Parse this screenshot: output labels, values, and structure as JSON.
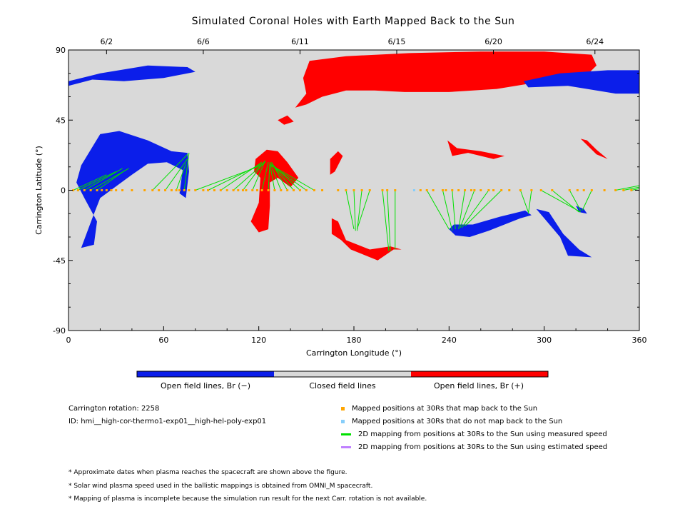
{
  "title": "Simulated Coronal Holes with Earth Mapped Back to the Sun",
  "colors": {
    "open_negative": "#0b1eea",
    "open_positive": "#ff0000",
    "closed": "#d9d9d9",
    "mapped": "#ffa500",
    "unmapped": "#87cefa",
    "measured_line": "#00e000",
    "estimated_line": "#c080ff"
  },
  "colorbar": {
    "labels": [
      "Open field lines, Br (−)",
      "Closed field lines",
      "Open field lines, Br (+)"
    ]
  },
  "info": {
    "rotation": "Carrington rotation: 2258",
    "id": "ID: hmi__high-cor-thermo1-exp01__high-hel-poly-exp01"
  },
  "legend": [
    {
      "label": "Mapped positions at 30Rs that map back to the Sun",
      "kind": "square",
      "color": "#ffa500"
    },
    {
      "label": "Mapped positions at 30Rs that do not map back to the Sun",
      "kind": "square",
      "color": "#87cefa"
    },
    {
      "label": "2D mapping from positions at 30Rs to the Sun using measured speed",
      "kind": "line",
      "color": "#00e000"
    },
    {
      "label": "2D mapping from positions at 30Rs to the Sun using estimated speed",
      "kind": "line",
      "color": "#c080ff"
    }
  ],
  "notes": [
    "* Approximate dates when plasma reaches the spacecraft are shown above the figure.",
    "* Solar wind plasma speed used in the ballistic mappings is obtained from OMNI_M spacecraft.",
    "* Mapping of plasma is incomplete because the simulation run result for the next Carr. rotation is not available."
  ],
  "chart_data": {
    "type": "scatter",
    "title": "Simulated Coronal Holes with Earth Mapped Back to the Sun",
    "xlabel": "Carrington Longitude (°)",
    "ylabel": "Carrington Latitude (°)",
    "xlim": [
      0,
      360
    ],
    "ylim": [
      -90,
      90
    ],
    "xticks": [
      0,
      60,
      120,
      180,
      240,
      300,
      360
    ],
    "yticks": [
      -90,
      -45,
      0,
      45,
      90
    ],
    "top_axis": {
      "ticks": [
        {
          "lon": 24,
          "label": "6/2"
        },
        {
          "lon": 85,
          "label": "6/6"
        },
        {
          "lon": 146,
          "label": "6/11"
        },
        {
          "lon": 207,
          "label": "6/15"
        },
        {
          "lon": 268,
          "label": "6/20"
        },
        {
          "lon": 332,
          "label": "6/24"
        }
      ]
    },
    "coronal_holes": [
      {
        "polarity": "positive",
        "points": [
          [
            152,
            83
          ],
          [
            175,
            86
          ],
          [
            215,
            88
          ],
          [
            260,
            89
          ],
          [
            300,
            89
          ],
          [
            330,
            87
          ],
          [
            333,
            80
          ],
          [
            325,
            72
          ],
          [
            300,
            70
          ],
          [
            270,
            65
          ],
          [
            240,
            63
          ],
          [
            212,
            63
          ],
          [
            193,
            64
          ],
          [
            175,
            64
          ],
          [
            160,
            60
          ],
          [
            150,
            55
          ],
          [
            143,
            53
          ],
          [
            150,
            62
          ],
          [
            148,
            72
          ]
        ]
      },
      {
        "polarity": "positive",
        "points": [
          [
            132,
            45
          ],
          [
            138,
            48
          ],
          [
            142,
            44
          ],
          [
            136,
            42
          ]
        ]
      },
      {
        "polarity": "positive",
        "points": [
          [
            118,
            20
          ],
          [
            125,
            26
          ],
          [
            132,
            25
          ],
          [
            138,
            18
          ],
          [
            145,
            8
          ],
          [
            140,
            2
          ],
          [
            132,
            8
          ],
          [
            127,
            5
          ],
          [
            127,
            -10
          ],
          [
            126,
            -25
          ],
          [
            120,
            -27
          ],
          [
            115,
            -20
          ],
          [
            120,
            -8
          ],
          [
            121,
            8
          ],
          [
            117,
            12
          ]
        ]
      },
      {
        "polarity": "positive",
        "points": [
          [
            165,
            20
          ],
          [
            170,
            25
          ],
          [
            173,
            22
          ],
          [
            168,
            12
          ],
          [
            165,
            10
          ]
        ]
      },
      {
        "polarity": "positive",
        "points": [
          [
            166,
            -28
          ],
          [
            172,
            -32
          ],
          [
            178,
            -38
          ],
          [
            195,
            -45
          ],
          [
            205,
            -38
          ],
          [
            210,
            -38
          ],
          [
            203,
            -36
          ],
          [
            190,
            -38
          ],
          [
            175,
            -32
          ],
          [
            170,
            -20
          ],
          [
            166,
            -18
          ]
        ]
      },
      {
        "polarity": "positive",
        "points": [
          [
            239,
            32
          ],
          [
            245,
            27
          ],
          [
            260,
            25
          ],
          [
            275,
            22
          ],
          [
            268,
            20
          ],
          [
            252,
            24
          ],
          [
            242,
            22
          ]
        ]
      },
      {
        "polarity": "positive",
        "points": [
          [
            323,
            33
          ],
          [
            333,
            23
          ],
          [
            340,
            20
          ],
          [
            333,
            26
          ],
          [
            327,
            32
          ]
        ]
      },
      {
        "polarity": "negative",
        "points": [
          [
            0,
            70
          ],
          [
            20,
            75
          ],
          [
            50,
            80
          ],
          [
            75,
            79
          ],
          [
            80,
            76
          ],
          [
            60,
            72
          ],
          [
            35,
            70
          ],
          [
            15,
            71
          ],
          [
            0,
            67
          ]
        ]
      },
      {
        "polarity": "negative",
        "points": [
          [
            287,
            70
          ],
          [
            310,
            75
          ],
          [
            340,
            77
          ],
          [
            360,
            77
          ],
          [
            360,
            62
          ],
          [
            345,
            62
          ],
          [
            315,
            67
          ],
          [
            290,
            66
          ]
        ]
      },
      {
        "polarity": "negative",
        "points": [
          [
            8,
            16
          ],
          [
            20,
            36
          ],
          [
            32,
            38
          ],
          [
            50,
            32
          ],
          [
            65,
            25
          ],
          [
            75,
            24
          ],
          [
            76,
            12
          ],
          [
            74,
            -5
          ],
          [
            70,
            -2
          ],
          [
            72,
            13
          ],
          [
            62,
            18
          ],
          [
            50,
            17
          ],
          [
            40,
            10
          ],
          [
            20,
            -5
          ],
          [
            15,
            -18
          ],
          [
            8,
            -37
          ],
          [
            16,
            -35
          ],
          [
            18,
            -20
          ],
          [
            10,
            -5
          ],
          [
            5,
            5
          ]
        ]
      },
      {
        "polarity": "negative",
        "points": [
          [
            240,
            -25
          ],
          [
            244,
            -29
          ],
          [
            253,
            -30
          ],
          [
            265,
            -26
          ],
          [
            275,
            -22
          ],
          [
            285,
            -18
          ],
          [
            292,
            -16
          ],
          [
            288,
            -13
          ],
          [
            272,
            -17
          ],
          [
            255,
            -22
          ],
          [
            243,
            -22
          ]
        ]
      },
      {
        "polarity": "negative",
        "points": [
          [
            295,
            -12
          ],
          [
            300,
            -18
          ],
          [
            310,
            -30
          ],
          [
            315,
            -42
          ],
          [
            330,
            -43
          ],
          [
            322,
            -38
          ],
          [
            312,
            -28
          ],
          [
            303,
            -14
          ]
        ]
      },
      {
        "polarity": "negative",
        "points": [
          [
            320,
            -10
          ],
          [
            325,
            -12
          ],
          [
            327,
            -15
          ],
          [
            322,
            -14
          ]
        ]
      }
    ],
    "mapped_points": {
      "status": "map back to the Sun",
      "longitudes": [
        3,
        6,
        10,
        14,
        18,
        21,
        24,
        27,
        30,
        34,
        40,
        48,
        53,
        57,
        61,
        65,
        68,
        70,
        73,
        76,
        80,
        85,
        88,
        92,
        96,
        100,
        104,
        107,
        110,
        112,
        116,
        119,
        122,
        126,
        130,
        134,
        138,
        142,
        146,
        150,
        155,
        160,
        170,
        175,
        180,
        185,
        190,
        198,
        201,
        206,
        222,
        226,
        230,
        236,
        238,
        242,
        246,
        250,
        254,
        256,
        260,
        265,
        268,
        273,
        278,
        285,
        292,
        298,
        305,
        316,
        321,
        325,
        330,
        338,
        345,
        350,
        355
      ]
    },
    "unmapped_points": {
      "status": "do not map back to the Sun",
      "longitudes": [
        218
      ]
    },
    "mapping_lines": [
      {
        "from": [
          3,
          0
        ],
        "to": [
          24,
          10
        ]
      },
      {
        "from": [
          6,
          0
        ],
        "to": [
          30,
          12
        ]
      },
      {
        "from": [
          10,
          0
        ],
        "to": [
          34,
          14
        ]
      },
      {
        "from": [
          14,
          0
        ],
        "to": [
          38,
          14
        ]
      },
      {
        "from": [
          18,
          0
        ],
        "to": [
          36,
          13
        ]
      },
      {
        "from": [
          53,
          0
        ],
        "to": [
          75,
          23
        ]
      },
      {
        "from": [
          61,
          0
        ],
        "to": [
          75,
          20
        ]
      },
      {
        "from": [
          68,
          0
        ],
        "to": [
          74,
          17
        ]
      },
      {
        "from": [
          73,
          0
        ],
        "to": [
          76,
          24
        ]
      },
      {
        "from": [
          80,
          0
        ],
        "to": [
          122,
          16
        ]
      },
      {
        "from": [
          88,
          0
        ],
        "to": [
          122,
          17
        ]
      },
      {
        "from": [
          96,
          0
        ],
        "to": [
          122,
          18
        ]
      },
      {
        "from": [
          104,
          0
        ],
        "to": [
          124,
          18
        ]
      },
      {
        "from": [
          110,
          0
        ],
        "to": [
          124,
          19
        ]
      },
      {
        "from": [
          116,
          0
        ],
        "to": [
          124,
          19
        ]
      },
      {
        "from": [
          122,
          0
        ],
        "to": [
          126,
          18
        ]
      },
      {
        "from": [
          126,
          0
        ],
        "to": [
          127,
          17
        ]
      },
      {
        "from": [
          130,
          0
        ],
        "to": [
          127,
          17
        ]
      },
      {
        "from": [
          134,
          0
        ],
        "to": [
          127,
          18
        ]
      },
      {
        "from": [
          138,
          0
        ],
        "to": [
          128,
          18
        ]
      },
      {
        "from": [
          142,
          0
        ],
        "to": [
          128,
          17
        ]
      },
      {
        "from": [
          146,
          0
        ],
        "to": [
          128,
          17
        ]
      },
      {
        "from": [
          150,
          0
        ],
        "to": [
          128,
          16
        ]
      },
      {
        "from": [
          155,
          0
        ],
        "to": [
          128,
          16
        ]
      },
      {
        "from": [
          175,
          0
        ],
        "to": [
          180,
          -25
        ]
      },
      {
        "from": [
          180,
          0
        ],
        "to": [
          181,
          -26
        ]
      },
      {
        "from": [
          185,
          0
        ],
        "to": [
          182,
          -26
        ]
      },
      {
        "from": [
          190,
          0
        ],
        "to": [
          182,
          -25
        ]
      },
      {
        "from": [
          198,
          0
        ],
        "to": [
          202,
          -39
        ]
      },
      {
        "from": [
          201,
          0
        ],
        "to": [
          203,
          -39
        ]
      },
      {
        "from": [
          206,
          0
        ],
        "to": [
          206,
          -38
        ]
      },
      {
        "from": [
          226,
          0
        ],
        "to": [
          240,
          -25
        ]
      },
      {
        "from": [
          236,
          0
        ],
        "to": [
          242,
          -26
        ]
      },
      {
        "from": [
          242,
          0
        ],
        "to": [
          244,
          -25
        ]
      },
      {
        "from": [
          250,
          0
        ],
        "to": [
          246,
          -25
        ]
      },
      {
        "from": [
          256,
          0
        ],
        "to": [
          247,
          -24
        ]
      },
      {
        "from": [
          265,
          0
        ],
        "to": [
          248,
          -24
        ]
      },
      {
        "from": [
          273,
          0
        ],
        "to": [
          250,
          -23
        ]
      },
      {
        "from": [
          285,
          0
        ],
        "to": [
          290,
          -14
        ]
      },
      {
        "from": [
          292,
          0
        ],
        "to": [
          290,
          -15
        ]
      },
      {
        "from": [
          298,
          0
        ],
        "to": [
          323,
          -14
        ]
      },
      {
        "from": [
          305,
          0
        ],
        "to": [
          322,
          -14
        ]
      },
      {
        "from": [
          316,
          0
        ],
        "to": [
          323,
          -13
        ]
      },
      {
        "from": [
          330,
          0
        ],
        "to": [
          324,
          -13
        ]
      },
      {
        "from": [
          345,
          0
        ],
        "to": [
          360,
          3
        ]
      },
      {
        "from": [
          350,
          0
        ],
        "to": [
          360,
          2
        ]
      },
      {
        "from": [
          355,
          0
        ],
        "to": [
          360,
          1
        ]
      }
    ]
  }
}
